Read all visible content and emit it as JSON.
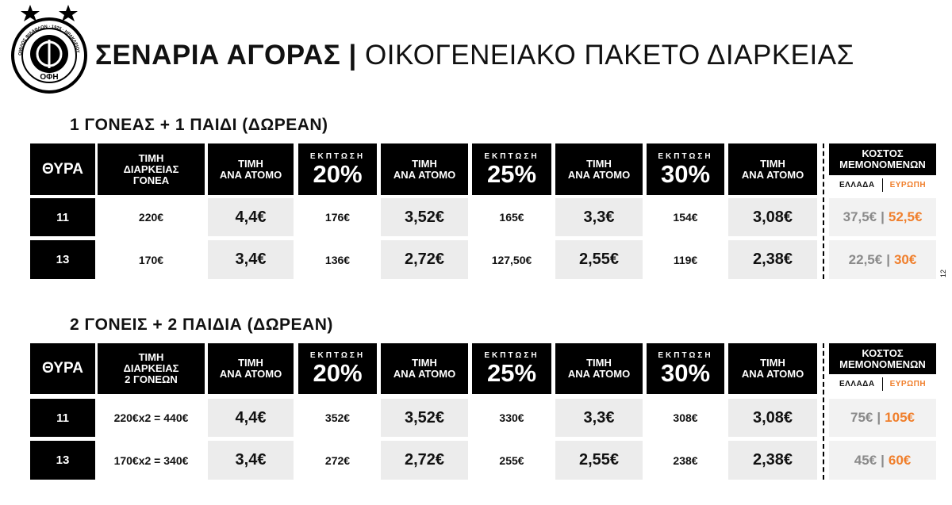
{
  "header": {
    "title_bold": "ΣΕΝΑΡΙΑ ΑΓΟΡΑΣ",
    "separator": "|",
    "title_rest": "ΟΙΚΟΓΕΝΕΙΑΚΟ ΠΑΚΕΤΟ ΔΙΑΡΚΕΙΑΣ"
  },
  "logo": {
    "name": "ΟΦΗ",
    "ring_text": "ΟΜΙΛΟΣ ΦΙΛΑΘΛΩΝ · 1925 · ΗΡΑΚΛΕΙΟΥ ΚΡΗΤΗΣ"
  },
  "page_number": "12",
  "cost_separator": "|",
  "sections": [
    {
      "title": "1 ΓΟΝΕΑΣ + 1 ΠΑΙΔΙ (ΔΩΡΕΑΝ)",
      "headers": [
        {
          "lines": [
            "ΘΥΡΑ"
          ]
        },
        {
          "lines": [
            "ΤΙΜΗ",
            "ΔΙΑΡΚΕΙΑΣ",
            "ΓΟΝΕΑ"
          ]
        },
        {
          "lines": [
            "ΤΙΜΗ",
            "ΑΝΑ ΑΤΟΜΟ"
          ]
        },
        {
          "small": "ΕΚΠΤΩΣΗ",
          "big": "20%"
        },
        {
          "lines": [
            "ΤΙΜΗ",
            "ΑΝΑ ΑΤΟΜΟ"
          ]
        },
        {
          "small": "ΕΚΠΤΩΣΗ",
          "big": "25%"
        },
        {
          "lines": [
            "ΤΙΜΗ",
            "ΑΝΑ ΑΤΟΜΟ"
          ]
        },
        {
          "small": "ΕΚΠΤΩΣΗ",
          "big": "30%"
        },
        {
          "lines": [
            "ΤΙΜΗ",
            "ΑΝΑ ΑΤΟΜΟ"
          ]
        },
        {
          "lines": [
            "ΚΟΣΤΟΣ",
            "ΜΕΜΟΝΟΜΕΝΩΝ"
          ],
          "sub": [
            "ΕΛΛΑΔΑ",
            "ΕΥΡΩΠΗ"
          ]
        }
      ],
      "rows": [
        [
          "11",
          "220€",
          "4,4€",
          "176€",
          "3,52€",
          "165€",
          "3,3€",
          "154€",
          "3,08€",
          [
            "37,5€",
            "52,5€"
          ]
        ],
        [
          "13",
          "170€",
          "3,4€",
          "136€",
          "2,72€",
          "127,50€",
          "2,55€",
          "119€",
          "2,38€",
          [
            "22,5€",
            "30€"
          ]
        ]
      ]
    },
    {
      "title": "2 ΓΟΝΕΙΣ + 2 ΠΑΙΔΙΑ (ΔΩΡΕΑΝ)",
      "headers": [
        {
          "lines": [
            "ΘΥΡΑ"
          ]
        },
        {
          "lines": [
            "ΤΙΜΗ",
            "ΔΙΑΡΚΕΙΑΣ",
            "2 ΓΟΝΕΩΝ"
          ]
        },
        {
          "lines": [
            "ΤΙΜΗ",
            "ΑΝΑ ΑΤΟΜΟ"
          ]
        },
        {
          "small": "ΕΚΠΤΩΣΗ",
          "big": "20%"
        },
        {
          "lines": [
            "ΤΙΜΗ",
            "ΑΝΑ ΑΤΟΜΟ"
          ]
        },
        {
          "small": "ΕΚΠΤΩΣΗ",
          "big": "25%"
        },
        {
          "lines": [
            "ΤΙΜΗ",
            "ΑΝΑ ΑΤΟΜΟ"
          ]
        },
        {
          "small": "ΕΚΠΤΩΣΗ",
          "big": "30%"
        },
        {
          "lines": [
            "ΤΙΜΗ",
            "ΑΝΑ ΑΤΟΜΟ"
          ]
        },
        {
          "lines": [
            "ΚΟΣΤΟΣ",
            "ΜΕΜΟΝΟΜΕΝΩΝ"
          ],
          "sub": [
            "ΕΛΛΑΔΑ",
            "ΕΥΡΩΠΗ"
          ]
        }
      ],
      "rows": [
        [
          "11",
          "220€x2 = 440€",
          "4,4€",
          "352€",
          "3,52€",
          "330€",
          "3,3€",
          "308€",
          "3,08€",
          [
            "75€",
            "105€"
          ]
        ],
        [
          "13",
          "170€x2 = 340€",
          "3,4€",
          "272€",
          "2,72€",
          "255€",
          "2,55€",
          "238€",
          "2,38€",
          [
            "45€",
            "60€"
          ]
        ]
      ]
    }
  ]
}
